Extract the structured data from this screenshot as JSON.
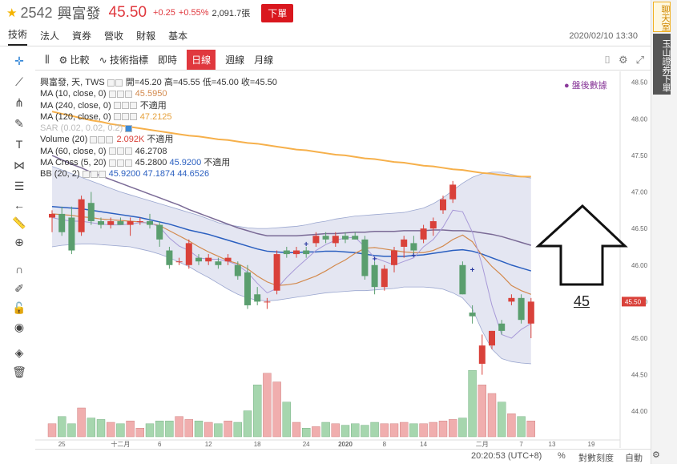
{
  "header": {
    "stock_code": "2542",
    "stock_name": "興富發",
    "price": "45.50",
    "change": "+0.25",
    "change_pct": "+0.55%",
    "volume": "2,091.7張",
    "order_button": "下單"
  },
  "tabs": [
    "技術",
    "法人",
    "資券",
    "營收",
    "財報",
    "基本"
  ],
  "datetime": "2020/02/10 13:30",
  "sidebar": {
    "chat": "聊天室",
    "trade": "玉山證券下單"
  },
  "toolbar": {
    "compare": "比較",
    "indicators": "技術指標",
    "intraday": "即時",
    "daily": "日線",
    "weekly": "週線",
    "monthly": "月線"
  },
  "legend": {
    "title": "興富發, 天, TWS",
    "open_label": "開=",
    "open": "45.20",
    "high_label": "高=",
    "high": "45.55",
    "low_label": "低=",
    "low": "45.00",
    "close_label": "收=",
    "close": "45.50",
    "ma10": "MA (10, close, 0)",
    "ma10_val": "45.5950",
    "ma240": "MA (240, close, 0)",
    "ma240_val": "不適用",
    "ma120": "MA (120, close, 0)",
    "ma120_val": "47.2125",
    "sar": "SAR (0.02, 0.02, 0.2)",
    "volume": "Volume (20)",
    "volume_val": "2.092K",
    "volume_val2": "不適用",
    "ma60": "MA (60, close, 0)",
    "ma60_val": "46.2708",
    "macross": "MA Cross (5, 20)",
    "macross_val1": "45.2800",
    "macross_val2": "45.9200",
    "macross_val3": "不適用",
    "bb": "BB (20, 2)",
    "bb_val1": "45.9200",
    "bb_val2": "47.1874",
    "bb_val3": "44.6526"
  },
  "badge": "盤後數據",
  "annotation_label": "45",
  "bottom": {
    "time": "20:20:53 (UTC+8)",
    "pct": "%",
    "log": "對數刻度",
    "auto": "自動"
  },
  "colors": {
    "up": "#d9413a",
    "down": "#5a9e6e",
    "ma120": "#f6b04b",
    "ma10": "#d38a4e",
    "ma60": "#7a6a96",
    "bb_mid": "#2a5fc0",
    "bb_fill": "#dfe2f0",
    "sar": "#2a3aa0",
    "macross": "#a89ad8",
    "vol_up": "#f0aeae",
    "vol_down": "#a6d6ae",
    "price_label": "#d9413a"
  },
  "chart_data": {
    "type": "candlestick",
    "x_ticks": [
      "25",
      "十二月",
      "6",
      "12",
      "18",
      "24",
      "2020",
      "8",
      "14",
      "二月",
      "7",
      "13",
      "19"
    ],
    "y_ticks": [
      "48.50",
      "48.00",
      "47.50",
      "47.00",
      "46.50",
      "46.00",
      "45.50",
      "45.00",
      "44.50",
      "44.00"
    ],
    "ylim": [
      43.63,
      48.65
    ],
    "last_price_label": "45.50",
    "candles": [
      {
        "o": 46.65,
        "h": 46.75,
        "l": 46.45,
        "c": 46.7
      },
      {
        "o": 46.7,
        "h": 46.8,
        "l": 46.4,
        "c": 46.45
      },
      {
        "o": 46.65,
        "h": 46.8,
        "l": 46.15,
        "c": 46.2
      },
      {
        "o": 46.45,
        "h": 46.95,
        "l": 46.4,
        "c": 46.9
      },
      {
        "o": 46.85,
        "h": 47.0,
        "l": 46.55,
        "c": 46.6
      },
      {
        "o": 46.6,
        "h": 46.65,
        "l": 46.5,
        "c": 46.55
      },
      {
        "o": 46.55,
        "h": 46.65,
        "l": 46.5,
        "c": 46.6
      },
      {
        "o": 46.6,
        "h": 46.65,
        "l": 46.55,
        "c": 46.55
      },
      {
        "o": 46.55,
        "h": 46.65,
        "l": 46.4,
        "c": 46.6
      },
      {
        "o": 46.6,
        "h": 46.65,
        "l": 46.55,
        "c": 46.6
      },
      {
        "o": 46.6,
        "h": 46.7,
        "l": 46.5,
        "c": 46.55
      },
      {
        "o": 46.55,
        "h": 46.6,
        "l": 46.25,
        "c": 46.35
      },
      {
        "o": 46.2,
        "h": 46.25,
        "l": 45.95,
        "c": 46.0
      },
      {
        "o": 46.05,
        "h": 46.1,
        "l": 46.0,
        "c": 46.05
      },
      {
        "o": 46.0,
        "h": 46.35,
        "l": 45.95,
        "c": 46.3
      },
      {
        "o": 46.1,
        "h": 46.15,
        "l": 46.0,
        "c": 46.05
      },
      {
        "o": 46.05,
        "h": 46.15,
        "l": 46.0,
        "c": 46.1
      },
      {
        "o": 46.05,
        "h": 46.1,
        "l": 45.95,
        "c": 46.0
      },
      {
        "o": 46.05,
        "h": 46.15,
        "l": 46.0,
        "c": 46.1
      },
      {
        "o": 46.0,
        "h": 46.05,
        "l": 45.8,
        "c": 45.85
      },
      {
        "o": 45.9,
        "h": 46.0,
        "l": 45.4,
        "c": 45.45
      },
      {
        "o": 45.6,
        "h": 45.7,
        "l": 45.45,
        "c": 45.5
      },
      {
        "o": 45.5,
        "h": 45.55,
        "l": 45.4,
        "c": 45.5
      },
      {
        "o": 45.65,
        "h": 46.2,
        "l": 45.6,
        "c": 46.15
      },
      {
        "o": 46.2,
        "h": 46.25,
        "l": 46.1,
        "c": 46.15
      },
      {
        "o": 46.15,
        "h": 46.25,
        "l": 46.1,
        "c": 46.2
      },
      {
        "o": 46.2,
        "h": 46.25,
        "l": 46.1,
        "c": 46.15
      },
      {
        "o": 46.3,
        "h": 46.45,
        "l": 46.25,
        "c": 46.4
      },
      {
        "o": 46.4,
        "h": 46.45,
        "l": 46.3,
        "c": 46.35
      },
      {
        "o": 46.3,
        "h": 46.45,
        "l": 46.25,
        "c": 46.4
      },
      {
        "o": 46.4,
        "h": 46.45,
        "l": 46.3,
        "c": 46.35
      },
      {
        "o": 46.4,
        "h": 46.45,
        "l": 46.35,
        "c": 46.35
      },
      {
        "o": 46.35,
        "h": 46.4,
        "l": 45.8,
        "c": 45.85
      },
      {
        "o": 46.0,
        "h": 46.05,
        "l": 45.6,
        "c": 45.7
      },
      {
        "o": 45.7,
        "h": 46.0,
        "l": 45.65,
        "c": 45.95
      },
      {
        "o": 46.0,
        "h": 46.25,
        "l": 45.9,
        "c": 46.2
      },
      {
        "o": 46.25,
        "h": 46.4,
        "l": 46.1,
        "c": 46.35
      },
      {
        "o": 46.3,
        "h": 46.4,
        "l": 46.15,
        "c": 46.2
      },
      {
        "o": 46.35,
        "h": 46.55,
        "l": 46.3,
        "c": 46.5
      },
      {
        "o": 46.5,
        "h": 46.65,
        "l": 46.4,
        "c": 46.6
      },
      {
        "o": 46.75,
        "h": 46.95,
        "l": 46.7,
        "c": 46.9
      },
      {
        "o": 46.9,
        "h": 47.15,
        "l": 46.85,
        "c": 47.1
      },
      {
        "o": 46.0,
        "h": 46.05,
        "l": 45.6,
        "c": 45.6
      },
      {
        "o": 45.35,
        "h": 45.45,
        "l": 45.2,
        "c": 45.3
      },
      {
        "o": 44.65,
        "h": 45.05,
        "l": 44.5,
        "c": 44.9
      },
      {
        "o": 44.9,
        "h": 45.1,
        "l": 44.85,
        "c": 45.1
      },
      {
        "o": 45.2,
        "h": 45.25,
        "l": 45.05,
        "c": 45.1
      },
      {
        "o": 45.5,
        "h": 45.6,
        "l": 45.45,
        "c": 45.55
      },
      {
        "o": 45.55,
        "h": 45.6,
        "l": 45.2,
        "c": 45.25
      },
      {
        "o": 45.2,
        "h": 45.55,
        "l": 45.0,
        "c": 45.5
      }
    ],
    "volumes": [
      0.45,
      0.7,
      0.45,
      1.0,
      0.65,
      0.6,
      0.5,
      0.45,
      0.55,
      0.3,
      0.45,
      0.55,
      0.55,
      0.7,
      0.6,
      0.55,
      0.5,
      0.45,
      0.55,
      0.5,
      0.9,
      1.8,
      2.2,
      1.9,
      1.2,
      0.5,
      0.3,
      0.35,
      0.5,
      0.45,
      0.4,
      0.45,
      0.4,
      0.5,
      0.45,
      0.45,
      0.5,
      0.45,
      0.45,
      0.5,
      0.55,
      0.6,
      0.65,
      2.3,
      1.8,
      1.5,
      1.2,
      0.8,
      0.7,
      0.55
    ],
    "ma120": [
      48.1,
      48.07,
      48.04,
      48.01,
      47.98,
      47.96,
      47.93,
      47.91,
      47.89,
      47.87,
      47.85,
      47.83,
      47.81,
      47.79,
      47.77,
      47.76,
      47.74,
      47.72,
      47.71,
      47.69,
      47.67,
      47.66,
      47.64,
      47.62,
      47.6,
      47.58,
      47.57,
      47.55,
      47.53,
      47.51,
      47.5,
      47.48,
      47.46,
      47.45,
      47.43,
      47.41,
      47.4,
      47.38,
      47.36,
      47.35,
      47.33,
      47.31,
      47.3,
      47.28,
      47.26,
      47.25,
      47.23,
      47.22,
      47.21,
      47.21
    ],
    "ma60": [
      47.5,
      47.44,
      47.38,
      47.33,
      47.27,
      47.22,
      47.17,
      47.12,
      47.07,
      47.02,
      46.97,
      46.92,
      46.87,
      46.82,
      46.76,
      46.71,
      46.66,
      46.61,
      46.56,
      46.51,
      46.47,
      46.43,
      46.4,
      46.4,
      46.4,
      46.4,
      46.41,
      46.42,
      46.43,
      46.43,
      46.44,
      46.45,
      46.45,
      46.46,
      46.46,
      46.46,
      46.47,
      46.47,
      46.47,
      46.48,
      46.48,
      46.47,
      46.47,
      46.46,
      46.44,
      46.42,
      46.39,
      46.35,
      46.31,
      46.27
    ],
    "bb_mid": [
      46.8,
      46.79,
      46.78,
      46.77,
      46.75,
      46.73,
      46.71,
      46.69,
      46.67,
      46.65,
      46.62,
      46.59,
      46.56,
      46.52,
      46.48,
      46.45,
      46.42,
      46.38,
      46.34,
      46.3,
      46.26,
      46.22,
      46.19,
      46.18,
      46.17,
      46.17,
      46.18,
      46.18,
      46.19,
      46.19,
      46.18,
      46.17,
      46.15,
      46.13,
      46.12,
      46.12,
      46.12,
      46.13,
      46.14,
      46.16,
      46.18,
      46.2,
      46.21,
      46.19,
      46.15,
      46.1,
      46.05,
      46.0,
      45.96,
      45.92
    ],
    "bb_upper": [
      47.35,
      47.3,
      47.25,
      47.2,
      47.15,
      47.1,
      47.05,
      47.0,
      46.96,
      46.92,
      46.88,
      46.84,
      46.8,
      46.76,
      46.72,
      46.68,
      46.63,
      46.58,
      46.55,
      46.53,
      46.51,
      46.5,
      46.5,
      46.51,
      46.52,
      46.53,
      46.55,
      46.58,
      46.6,
      46.63,
      46.65,
      46.67,
      46.68,
      46.69,
      46.7,
      46.71,
      46.72,
      46.75,
      46.78,
      46.84,
      46.92,
      47.02,
      47.12,
      47.2,
      47.25,
      47.27,
      47.27,
      47.24,
      47.21,
      47.19
    ],
    "bb_lower": [
      46.25,
      46.27,
      46.28,
      46.29,
      46.29,
      46.28,
      46.27,
      46.26,
      46.25,
      46.22,
      46.19,
      46.15,
      46.1,
      46.04,
      45.98,
      45.9,
      45.83,
      45.75,
      45.67,
      45.6,
      45.55,
      45.52,
      45.51,
      45.52,
      45.54,
      45.56,
      45.58,
      45.6,
      45.62,
      45.63,
      45.64,
      45.65,
      45.65,
      45.66,
      45.67,
      45.68,
      45.7,
      45.7,
      45.7,
      45.69,
      45.67,
      45.62,
      45.55,
      45.4,
      45.1,
      44.85,
      44.72,
      44.68,
      44.66,
      44.65
    ],
    "ma10": [
      46.7,
      46.69,
      46.68,
      46.66,
      46.65,
      46.63,
      46.62,
      46.61,
      46.6,
      46.59,
      46.57,
      46.54,
      46.47,
      46.4,
      46.33,
      46.25,
      46.18,
      46.12,
      46.06,
      46.02,
      45.95,
      45.85,
      45.77,
      45.72,
      45.73,
      45.75,
      45.8,
      45.85,
      45.92,
      46.0,
      46.07,
      46.16,
      46.23,
      46.24,
      46.22,
      46.2,
      46.18,
      46.17,
      46.17,
      46.2,
      46.26,
      46.35,
      46.41,
      46.32,
      46.13,
      45.98,
      45.86,
      45.72,
      45.65,
      45.6
    ],
    "ma5": [
      46.65,
      46.62,
      46.6,
      46.6,
      46.58,
      46.56,
      46.55,
      46.55,
      46.56,
      46.58,
      46.58,
      46.52,
      46.37,
      46.26,
      46.2,
      46.1,
      46.08,
      46.08,
      46.05,
      46.0,
      45.9,
      45.75,
      45.62,
      45.68,
      45.83,
      45.96,
      46.08,
      46.2,
      46.28,
      46.34,
      46.37,
      46.38,
      46.25,
      46.1,
      46.05,
      46.0,
      46.05,
      46.1,
      46.25,
      46.35,
      46.52,
      46.75,
      46.73,
      46.45,
      46.0,
      45.45,
      45.05,
      45.0,
      45.12,
      45.2
    ],
    "sar": [
      null,
      null,
      null,
      null,
      null,
      null,
      null,
      null,
      null,
      null,
      null,
      null,
      null,
      null,
      null,
      null,
      null,
      null,
      null,
      null,
      null,
      null,
      null,
      null,
      null,
      null,
      46.28,
      null,
      null,
      null,
      null,
      null,
      null,
      46.08,
      null,
      null,
      null,
      46.13,
      null,
      null,
      null,
      null,
      null,
      45.93,
      null,
      null,
      null,
      null,
      null,
      null
    ]
  }
}
